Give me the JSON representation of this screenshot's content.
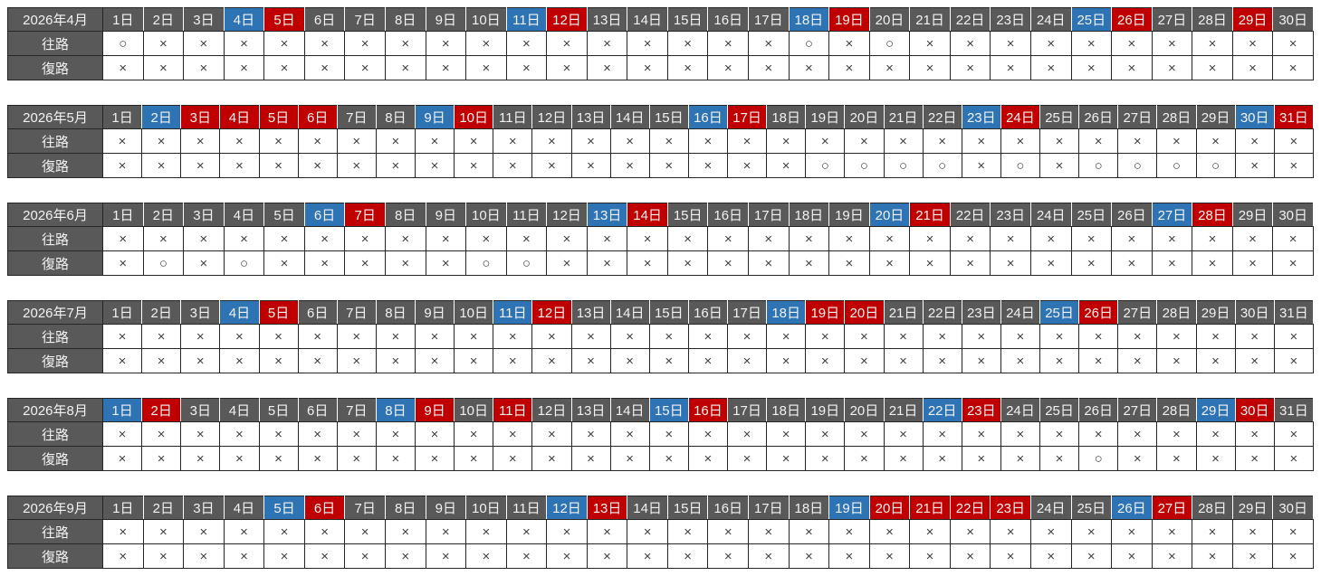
{
  "colors": {
    "header_bg": "#595959",
    "header_text": "#f2f2f2",
    "saturday_blue": "#2e74b5",
    "holiday_red": "#c00000",
    "symbol_color": "#404040",
    "border_dark": "#262626"
  },
  "row_labels": {
    "outbound": "往路",
    "inbound": "復路"
  },
  "symbols": {
    "available": "○",
    "unavailable": "×"
  },
  "months": [
    {
      "label": "2026年4月",
      "day_labels": [
        "1日",
        "2日",
        "3日",
        "4日",
        "5日",
        "6日",
        "7日",
        "8日",
        "9日",
        "10日",
        "11日",
        "12日",
        "13日",
        "14日",
        "15日",
        "16日",
        "17日",
        "18日",
        "19日",
        "20日",
        "21日",
        "22日",
        "23日",
        "24日",
        "25日",
        "26日",
        "27日",
        "28日",
        "29日",
        "30日"
      ],
      "day_colors": [
        "gray",
        "gray",
        "gray",
        "blue",
        "red",
        "gray",
        "gray",
        "gray",
        "gray",
        "gray",
        "blue",
        "red",
        "gray",
        "gray",
        "gray",
        "gray",
        "gray",
        "blue",
        "red",
        "gray",
        "gray",
        "gray",
        "gray",
        "gray",
        "blue",
        "red",
        "gray",
        "gray",
        "red",
        "gray"
      ],
      "outbound": [
        "○",
        "×",
        "×",
        "×",
        "×",
        "×",
        "×",
        "×",
        "×",
        "×",
        "×",
        "×",
        "×",
        "×",
        "×",
        "×",
        "×",
        "○",
        "×",
        "○",
        "×",
        "×",
        "×",
        "×",
        "×",
        "×",
        "×",
        "×",
        "×",
        "×"
      ],
      "inbound": [
        "×",
        "×",
        "×",
        "×",
        "×",
        "×",
        "×",
        "×",
        "×",
        "×",
        "×",
        "×",
        "×",
        "×",
        "×",
        "×",
        "×",
        "×",
        "×",
        "×",
        "×",
        "×",
        "×",
        "×",
        "×",
        "×",
        "×",
        "×",
        "×",
        "×"
      ]
    },
    {
      "label": "2026年5月",
      "day_labels": [
        "1日",
        "2日",
        "3日",
        "4日",
        "5日",
        "6日",
        "7日",
        "8日",
        "9日",
        "10日",
        "11日",
        "12日",
        "13日",
        "14日",
        "15日",
        "16日",
        "17日",
        "18日",
        "19日",
        "20日",
        "21日",
        "22日",
        "23日",
        "24日",
        "25日",
        "26日",
        "27日",
        "28日",
        "29日",
        "30日",
        "31日"
      ],
      "day_colors": [
        "gray",
        "blue",
        "red",
        "red",
        "red",
        "red",
        "gray",
        "gray",
        "blue",
        "red",
        "gray",
        "gray",
        "gray",
        "gray",
        "gray",
        "blue",
        "red",
        "gray",
        "gray",
        "gray",
        "gray",
        "gray",
        "blue",
        "red",
        "gray",
        "gray",
        "gray",
        "gray",
        "gray",
        "blue",
        "red"
      ],
      "outbound": [
        "×",
        "×",
        "×",
        "×",
        "×",
        "×",
        "×",
        "×",
        "×",
        "×",
        "×",
        "×",
        "×",
        "×",
        "×",
        "×",
        "×",
        "×",
        "×",
        "×",
        "×",
        "×",
        "×",
        "×",
        "×",
        "×",
        "×",
        "×",
        "×",
        "×",
        "×"
      ],
      "inbound": [
        "×",
        "×",
        "×",
        "×",
        "×",
        "×",
        "×",
        "×",
        "×",
        "×",
        "×",
        "×",
        "×",
        "×",
        "×",
        "×",
        "×",
        "×",
        "○",
        "○",
        "○",
        "○",
        "×",
        "○",
        "×",
        "○",
        "○",
        "○",
        "○",
        "×",
        "×"
      ]
    },
    {
      "label": "2026年6月",
      "day_labels": [
        "1日",
        "2日",
        "3日",
        "4日",
        "5日",
        "6日",
        "7日",
        "8日",
        "9日",
        "10日",
        "11日",
        "12日",
        "13日",
        "14日",
        "15日",
        "16日",
        "17日",
        "18日",
        "19日",
        "20日",
        "21日",
        "22日",
        "23日",
        "24日",
        "25日",
        "26日",
        "27日",
        "28日",
        "29日",
        "30日"
      ],
      "day_colors": [
        "gray",
        "gray",
        "gray",
        "gray",
        "gray",
        "blue",
        "red",
        "gray",
        "gray",
        "gray",
        "gray",
        "gray",
        "blue",
        "red",
        "gray",
        "gray",
        "gray",
        "gray",
        "gray",
        "blue",
        "red",
        "gray",
        "gray",
        "gray",
        "gray",
        "gray",
        "blue",
        "red",
        "gray",
        "gray"
      ],
      "outbound": [
        "×",
        "×",
        "×",
        "×",
        "×",
        "×",
        "×",
        "×",
        "×",
        "×",
        "×",
        "×",
        "×",
        "×",
        "×",
        "×",
        "×",
        "×",
        "×",
        "×",
        "×",
        "×",
        "×",
        "×",
        "×",
        "×",
        "×",
        "×",
        "×",
        "×"
      ],
      "inbound": [
        "×",
        "○",
        "×",
        "○",
        "×",
        "×",
        "×",
        "×",
        "×",
        "○",
        "○",
        "×",
        "×",
        "×",
        "×",
        "×",
        "×",
        "×",
        "×",
        "×",
        "×",
        "×",
        "×",
        "×",
        "×",
        "×",
        "×",
        "×",
        "×",
        "×"
      ]
    },
    {
      "label": "2026年7月",
      "day_labels": [
        "1日",
        "2日",
        "3日",
        "4日",
        "5日",
        "6日",
        "7日",
        "8日",
        "9日",
        "10日",
        "11日",
        "12日",
        "13日",
        "14日",
        "15日",
        "16日",
        "17日",
        "18日",
        "19日",
        "20日",
        "21日",
        "22日",
        "23日",
        "24日",
        "25日",
        "26日",
        "27日",
        "28日",
        "29日",
        "30日",
        "31日"
      ],
      "day_colors": [
        "gray",
        "gray",
        "gray",
        "blue",
        "red",
        "gray",
        "gray",
        "gray",
        "gray",
        "gray",
        "blue",
        "red",
        "gray",
        "gray",
        "gray",
        "gray",
        "gray",
        "blue",
        "red",
        "red",
        "gray",
        "gray",
        "gray",
        "gray",
        "blue",
        "red",
        "gray",
        "gray",
        "gray",
        "gray",
        "gray"
      ],
      "outbound": [
        "×",
        "×",
        "×",
        "×",
        "×",
        "×",
        "×",
        "×",
        "×",
        "×",
        "×",
        "×",
        "×",
        "×",
        "×",
        "×",
        "×",
        "×",
        "×",
        "×",
        "×",
        "×",
        "×",
        "×",
        "×",
        "×",
        "×",
        "×",
        "×",
        "×",
        "×"
      ],
      "inbound": [
        "×",
        "×",
        "×",
        "×",
        "×",
        "×",
        "×",
        "×",
        "×",
        "×",
        "×",
        "×",
        "×",
        "×",
        "×",
        "×",
        "×",
        "×",
        "×",
        "×",
        "×",
        "×",
        "×",
        "×",
        "×",
        "×",
        "×",
        "×",
        "×",
        "×",
        "×"
      ]
    },
    {
      "label": "2026年8月",
      "day_labels": [
        "1日",
        "2日",
        "3日",
        "4日",
        "5日",
        "6日",
        "7日",
        "8日",
        "9日",
        "10日",
        "11日",
        "12日",
        "13日",
        "14日",
        "15日",
        "16日",
        "17日",
        "18日",
        "19日",
        "20日",
        "21日",
        "22日",
        "23日",
        "24日",
        "25日",
        "26日",
        "27日",
        "28日",
        "29日",
        "30日",
        "31日"
      ],
      "day_colors": [
        "blue",
        "red",
        "gray",
        "gray",
        "gray",
        "gray",
        "gray",
        "blue",
        "red",
        "gray",
        "red",
        "gray",
        "gray",
        "gray",
        "blue",
        "red",
        "gray",
        "gray",
        "gray",
        "gray",
        "gray",
        "blue",
        "red",
        "gray",
        "gray",
        "gray",
        "gray",
        "gray",
        "blue",
        "red",
        "gray"
      ],
      "outbound": [
        "×",
        "×",
        "×",
        "×",
        "×",
        "×",
        "×",
        "×",
        "×",
        "×",
        "×",
        "×",
        "×",
        "×",
        "×",
        "×",
        "×",
        "×",
        "×",
        "×",
        "×",
        "×",
        "×",
        "×",
        "×",
        "×",
        "×",
        "×",
        "×",
        "×",
        "×"
      ],
      "inbound": [
        "×",
        "×",
        "×",
        "×",
        "×",
        "×",
        "×",
        "×",
        "×",
        "×",
        "×",
        "×",
        "×",
        "×",
        "×",
        "×",
        "×",
        "×",
        "×",
        "×",
        "×",
        "×",
        "×",
        "×",
        "×",
        "○",
        "×",
        "×",
        "×",
        "×",
        "×"
      ]
    },
    {
      "label": "2026年9月",
      "day_labels": [
        "1日",
        "2日",
        "3日",
        "4日",
        "5日",
        "6日",
        "7日",
        "8日",
        "9日",
        "10日",
        "11日",
        "12日",
        "13日",
        "14日",
        "15日",
        "16日",
        "17日",
        "18日",
        "19日",
        "20日",
        "21日",
        "22日",
        "23日",
        "24日",
        "25日",
        "26日",
        "27日",
        "28日",
        "29日",
        "30日"
      ],
      "day_colors": [
        "gray",
        "gray",
        "gray",
        "gray",
        "blue",
        "red",
        "gray",
        "gray",
        "gray",
        "gray",
        "gray",
        "blue",
        "red",
        "gray",
        "gray",
        "gray",
        "gray",
        "gray",
        "blue",
        "red",
        "red",
        "red",
        "red",
        "gray",
        "gray",
        "blue",
        "red",
        "gray",
        "gray",
        "gray"
      ],
      "outbound": [
        "×",
        "×",
        "×",
        "×",
        "×",
        "×",
        "×",
        "×",
        "×",
        "×",
        "×",
        "×",
        "×",
        "×",
        "×",
        "×",
        "×",
        "×",
        "×",
        "×",
        "×",
        "×",
        "×",
        "×",
        "×",
        "×",
        "×",
        "×",
        "×",
        "×"
      ],
      "inbound": [
        "×",
        "×",
        "×",
        "×",
        "×",
        "×",
        "×",
        "×",
        "×",
        "×",
        "×",
        "×",
        "×",
        "×",
        "×",
        "×",
        "×",
        "×",
        "×",
        "×",
        "×",
        "×",
        "×",
        "×",
        "×",
        "×",
        "×",
        "×",
        "×",
        "×"
      ]
    }
  ]
}
